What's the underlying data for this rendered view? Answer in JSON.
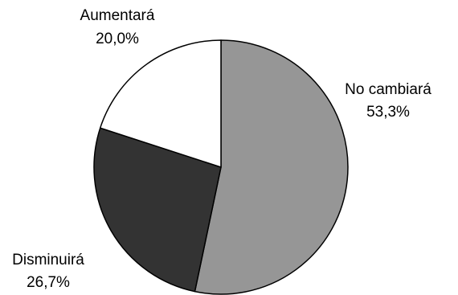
{
  "chart_data": {
    "type": "pie",
    "title": "",
    "slices": [
      {
        "label": "No cambiará",
        "value": 53.3,
        "value_label": "53,3%",
        "color": "#969696"
      },
      {
        "label": "Disminuirá",
        "value": 26.7,
        "value_label": "26,7%",
        "color": "#333333"
      },
      {
        "label": "Aumentará",
        "value": 20.0,
        "value_label": "20,0%",
        "color": "#ffffff"
      }
    ],
    "start_angle": "12 o'clock",
    "direction": "clockwise",
    "slice_border_color": "#000000",
    "legend": "none"
  }
}
